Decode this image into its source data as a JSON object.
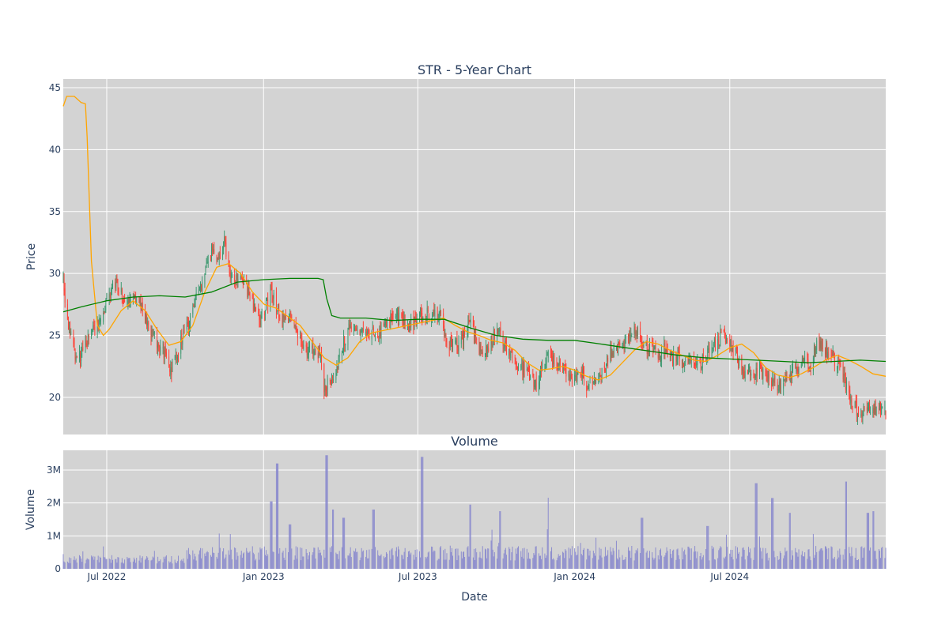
{
  "chart_data": {
    "type": "candlestick",
    "title": "STR - 5-Year Chart",
    "volume_title": "Volume",
    "xlabel": "Date",
    "ylabel": "Price",
    "volume_ylabel": "Volume",
    "x_range": [
      "2022-05-11",
      "2024-12-31"
    ],
    "price_ylim": [
      17,
      45.7
    ],
    "volume_ylim": [
      0,
      3600000
    ],
    "price_ticks": [
      20,
      25,
      30,
      35,
      40,
      45
    ],
    "volume_ticks": [
      {
        "value": 0,
        "label": "0"
      },
      {
        "value": 1000000,
        "label": "1M"
      },
      {
        "value": 2000000,
        "label": "2M"
      },
      {
        "value": 3000000,
        "label": "3M"
      }
    ],
    "x_ticks": [
      {
        "date": "2022-07-01",
        "label": "Jul 2022"
      },
      {
        "date": "2023-01-01",
        "label": "Jan 2023"
      },
      {
        "date": "2023-07-01",
        "label": "Jul 2023"
      },
      {
        "date": "2024-01-01",
        "label": "Jan 2024"
      },
      {
        "date": "2024-07-01",
        "label": "Jul 2024"
      }
    ],
    "grid": true,
    "legend": "none",
    "colors": {
      "up": "#3d9970",
      "down": "#ff4136",
      "ma_short": "#ffa500",
      "ma_long": "#008000",
      "volume": "#8080cc",
      "plot_bg": "#d3d3d3",
      "grid": "#ffffff",
      "text": "#2a3f5f"
    },
    "close_anchors": [
      [
        "2022-05-11",
        29.5
      ],
      [
        "2022-05-13",
        28.0
      ],
      [
        "2022-05-18",
        25.5
      ],
      [
        "2022-05-23",
        24.0
      ],
      [
        "2022-05-27",
        22.8
      ],
      [
        "2022-06-02",
        23.5
      ],
      [
        "2022-06-08",
        24.5
      ],
      [
        "2022-06-14",
        25.2
      ],
      [
        "2022-06-20",
        25.8
      ],
      [
        "2022-06-27",
        27.0
      ],
      [
        "2022-07-05",
        28.5
      ],
      [
        "2022-07-12",
        29.3
      ],
      [
        "2022-07-18",
        28.5
      ],
      [
        "2022-07-25",
        27.5
      ],
      [
        "2022-08-01",
        28.0
      ],
      [
        "2022-08-08",
        27.8
      ],
      [
        "2022-08-15",
        26.5
      ],
      [
        "2022-08-22",
        25.2
      ],
      [
        "2022-08-29",
        24.5
      ],
      [
        "2022-09-06",
        23.5
      ],
      [
        "2022-09-13",
        22.0
      ],
      [
        "2022-09-20",
        23.0
      ],
      [
        "2022-09-27",
        24.8
      ],
      [
        "2022-10-05",
        26.0
      ],
      [
        "2022-10-12",
        27.5
      ],
      [
        "2022-10-19",
        28.8
      ],
      [
        "2022-10-26",
        30.5
      ],
      [
        "2022-11-02",
        32.0
      ],
      [
        "2022-11-09",
        31.0
      ],
      [
        "2022-11-16",
        32.5
      ],
      [
        "2022-11-21",
        30.5
      ],
      [
        "2022-11-28",
        29.5
      ],
      [
        "2022-12-05",
        29.8
      ],
      [
        "2022-12-12",
        28.8
      ],
      [
        "2022-12-19",
        27.5
      ],
      [
        "2022-12-27",
        26.0
      ],
      [
        "2023-01-04",
        27.5
      ],
      [
        "2023-01-11",
        28.5
      ],
      [
        "2023-01-18",
        27.0
      ],
      [
        "2023-01-25",
        26.2
      ],
      [
        "2023-02-01",
        26.5
      ],
      [
        "2023-02-08",
        25.5
      ],
      [
        "2023-02-15",
        24.5
      ],
      [
        "2023-02-22",
        23.5
      ],
      [
        "2023-03-01",
        24.0
      ],
      [
        "2023-03-08",
        23.5
      ],
      [
        "2023-03-13",
        20.5
      ],
      [
        "2023-03-20",
        21.5
      ],
      [
        "2023-03-27",
        22.0
      ],
      [
        "2023-04-03",
        24.0
      ],
      [
        "2023-04-11",
        25.5
      ],
      [
        "2023-04-18",
        26.0
      ],
      [
        "2023-04-25",
        25.0
      ],
      [
        "2023-05-02",
        24.8
      ],
      [
        "2023-05-09",
        25.5
      ],
      [
        "2023-05-16",
        25.2
      ],
      [
        "2023-05-23",
        25.8
      ],
      [
        "2023-05-31",
        26.3
      ],
      [
        "2023-06-07",
        26.8
      ],
      [
        "2023-06-14",
        26.2
      ],
      [
        "2023-06-21",
        25.8
      ],
      [
        "2023-06-28",
        26.0
      ],
      [
        "2023-07-06",
        26.5
      ],
      [
        "2023-07-13",
        26.7
      ],
      [
        "2023-07-20",
        27.0
      ],
      [
        "2023-07-27",
        26.8
      ],
      [
        "2023-08-03",
        24.5
      ],
      [
        "2023-08-10",
        24.2
      ],
      [
        "2023-08-17",
        24.0
      ],
      [
        "2023-08-24",
        25.0
      ],
      [
        "2023-08-31",
        26.2
      ],
      [
        "2023-09-08",
        24.5
      ],
      [
        "2023-09-15",
        23.5
      ],
      [
        "2023-09-22",
        24.0
      ],
      [
        "2023-09-29",
        25.0
      ],
      [
        "2023-10-06",
        25.2
      ],
      [
        "2023-10-13",
        24.0
      ],
      [
        "2023-10-20",
        23.5
      ],
      [
        "2023-10-27",
        22.5
      ],
      [
        "2023-11-03",
        22.2
      ],
      [
        "2023-11-10",
        21.5
      ],
      [
        "2023-11-17",
        21.0
      ],
      [
        "2023-11-24",
        22.5
      ],
      [
        "2023-12-01",
        23.5
      ],
      [
        "2023-12-08",
        23.0
      ],
      [
        "2023-12-15",
        22.5
      ],
      [
        "2023-12-22",
        22.0
      ],
      [
        "2023-12-29",
        21.5
      ],
      [
        "2024-01-08",
        22.0
      ],
      [
        "2024-01-15",
        21.0
      ],
      [
        "2024-01-22",
        21.5
      ],
      [
        "2024-01-29",
        21.8
      ],
      [
        "2024-02-05",
        22.5
      ],
      [
        "2024-02-12",
        23.5
      ],
      [
        "2024-02-20",
        24.0
      ],
      [
        "2024-02-27",
        24.2
      ],
      [
        "2024-03-05",
        25.0
      ],
      [
        "2024-03-12",
        25.5
      ],
      [
        "2024-03-19",
        24.8
      ],
      [
        "2024-03-26",
        24.0
      ],
      [
        "2024-04-03",
        23.8
      ],
      [
        "2024-04-10",
        23.5
      ],
      [
        "2024-04-17",
        24.0
      ],
      [
        "2024-04-24",
        23.2
      ],
      [
        "2024-05-01",
        23.5
      ],
      [
        "2024-05-08",
        23.0
      ],
      [
        "2024-05-15",
        22.6
      ],
      [
        "2024-05-22",
        22.8
      ],
      [
        "2024-05-30",
        23.0
      ],
      [
        "2024-06-06",
        23.5
      ],
      [
        "2024-06-13",
        24.2
      ],
      [
        "2024-06-20",
        24.8
      ],
      [
        "2024-06-27",
        25.0
      ],
      [
        "2024-07-05",
        24.0
      ],
      [
        "2024-07-12",
        23.0
      ],
      [
        "2024-07-19",
        22.0
      ],
      [
        "2024-07-26",
        22.2
      ],
      [
        "2024-08-02",
        21.8
      ],
      [
        "2024-08-09",
        22.0
      ],
      [
        "2024-08-16",
        21.5
      ],
      [
        "2024-08-23",
        21.2
      ],
      [
        "2024-08-30",
        21.0
      ],
      [
        "2024-09-06",
        21.5
      ],
      [
        "2024-09-13",
        22.0
      ],
      [
        "2024-09-20",
        22.5
      ],
      [
        "2024-09-27",
        22.8
      ],
      [
        "2024-10-04",
        22.2
      ],
      [
        "2024-10-11",
        24.5
      ],
      [
        "2024-10-18",
        24.0
      ],
      [
        "2024-10-25",
        23.5
      ],
      [
        "2024-11-01",
        23.0
      ],
      [
        "2024-11-08",
        22.0
      ],
      [
        "2024-11-15",
        21.0
      ],
      [
        "2024-11-22",
        19.5
      ],
      [
        "2024-11-29",
        18.8
      ],
      [
        "2024-12-06",
        18.8
      ],
      [
        "2024-12-13",
        19.0
      ],
      [
        "2024-12-20",
        19.2
      ],
      [
        "2024-12-31",
        19.0
      ]
    ],
    "ma_short": {
      "name": "short moving average",
      "points": [
        [
          "2022-05-11",
          43.5
        ],
        [
          "2022-05-15",
          44.3
        ],
        [
          "2022-05-24",
          44.3
        ],
        [
          "2022-06-01",
          43.8
        ],
        [
          "2022-06-06",
          43.7
        ],
        [
          "2022-06-08",
          41.0
        ],
        [
          "2022-06-13",
          31.0
        ],
        [
          "2022-06-20",
          25.8
        ],
        [
          "2022-06-27",
          25.0
        ],
        [
          "2022-07-04",
          25.5
        ],
        [
          "2022-07-18",
          27.0
        ],
        [
          "2022-08-01",
          27.8
        ],
        [
          "2022-08-15",
          27.0
        ],
        [
          "2022-08-29",
          25.5
        ],
        [
          "2022-09-12",
          24.2
        ],
        [
          "2022-09-26",
          24.5
        ],
        [
          "2022-10-10",
          25.8
        ],
        [
          "2022-10-24",
          28.5
        ],
        [
          "2022-11-07",
          30.5
        ],
        [
          "2022-11-21",
          30.8
        ],
        [
          "2022-12-05",
          30.0
        ],
        [
          "2022-12-19",
          28.5
        ],
        [
          "2023-01-02",
          27.5
        ],
        [
          "2023-01-16",
          27.2
        ],
        [
          "2023-01-30",
          26.5
        ],
        [
          "2023-02-13",
          25.8
        ],
        [
          "2023-02-27",
          24.5
        ],
        [
          "2023-03-13",
          23.2
        ],
        [
          "2023-03-27",
          22.6
        ],
        [
          "2023-04-10",
          23.2
        ],
        [
          "2023-04-24",
          24.5
        ],
        [
          "2023-05-08",
          25.2
        ],
        [
          "2023-05-22",
          25.4
        ],
        [
          "2023-06-05",
          25.6
        ],
        [
          "2023-06-19",
          25.8
        ],
        [
          "2023-07-03",
          26.0
        ],
        [
          "2023-07-17",
          26.2
        ],
        [
          "2023-07-31",
          26.4
        ],
        [
          "2023-08-14",
          25.8
        ],
        [
          "2023-08-28",
          25.3
        ],
        [
          "2023-09-11",
          25.0
        ],
        [
          "2023-09-25",
          24.6
        ],
        [
          "2023-10-09",
          24.4
        ],
        [
          "2023-10-23",
          23.8
        ],
        [
          "2023-11-06",
          22.8
        ],
        [
          "2023-11-20",
          22.2
        ],
        [
          "2023-12-04",
          22.3
        ],
        [
          "2023-12-18",
          22.5
        ],
        [
          "2024-01-01",
          22.2
        ],
        [
          "2024-01-15",
          21.7
        ],
        [
          "2024-01-29",
          21.4
        ],
        [
          "2024-02-12",
          21.8
        ],
        [
          "2024-02-26",
          22.8
        ],
        [
          "2024-03-11",
          23.8
        ],
        [
          "2024-03-25",
          24.5
        ],
        [
          "2024-04-08",
          24.3
        ],
        [
          "2024-04-22",
          23.8
        ],
        [
          "2024-05-06",
          23.4
        ],
        [
          "2024-05-20",
          23.0
        ],
        [
          "2024-06-03",
          22.9
        ],
        [
          "2024-06-17",
          23.4
        ],
        [
          "2024-07-01",
          24.0
        ],
        [
          "2024-07-15",
          24.3
        ],
        [
          "2024-07-29",
          23.6
        ],
        [
          "2024-08-12",
          22.4
        ],
        [
          "2024-08-26",
          21.8
        ],
        [
          "2024-09-09",
          21.6
        ],
        [
          "2024-09-23",
          21.9
        ],
        [
          "2024-10-07",
          22.4
        ],
        [
          "2024-10-21",
          23.0
        ],
        [
          "2024-11-04",
          23.4
        ],
        [
          "2024-11-18",
          23.0
        ],
        [
          "2024-12-02",
          22.5
        ],
        [
          "2024-12-16",
          21.9
        ],
        [
          "2024-12-31",
          21.7
        ]
      ]
    },
    "ma_long": {
      "name": "long moving average",
      "points": [
        [
          "2022-05-11",
          26.9
        ],
        [
          "2022-06-01",
          27.3
        ],
        [
          "2022-07-01",
          27.8
        ],
        [
          "2022-08-01",
          28.1
        ],
        [
          "2022-09-01",
          28.2
        ],
        [
          "2022-10-01",
          28.1
        ],
        [
          "2022-11-01",
          28.5
        ],
        [
          "2022-12-01",
          29.3
        ],
        [
          "2023-01-01",
          29.5
        ],
        [
          "2023-02-01",
          29.6
        ],
        [
          "2023-03-06",
          29.6
        ],
        [
          "2023-03-12",
          29.5
        ],
        [
          "2023-03-16",
          28.0
        ],
        [
          "2023-03-22",
          26.6
        ],
        [
          "2023-04-01",
          26.4
        ],
        [
          "2023-05-01",
          26.4
        ],
        [
          "2023-06-01",
          26.2
        ],
        [
          "2023-07-01",
          26.3
        ],
        [
          "2023-08-01",
          26.3
        ],
        [
          "2023-09-01",
          25.6
        ],
        [
          "2023-10-01",
          25.0
        ],
        [
          "2023-11-01",
          24.7
        ],
        [
          "2023-12-01",
          24.6
        ],
        [
          "2024-01-01",
          24.6
        ],
        [
          "2024-02-01",
          24.3
        ],
        [
          "2024-03-01",
          24.0
        ],
        [
          "2024-04-01",
          23.7
        ],
        [
          "2024-05-01",
          23.4
        ],
        [
          "2024-06-01",
          23.2
        ],
        [
          "2024-07-01",
          23.1
        ],
        [
          "2024-08-01",
          23.0
        ],
        [
          "2024-09-01",
          22.9
        ],
        [
          "2024-10-01",
          22.8
        ],
        [
          "2024-11-01",
          22.9
        ],
        [
          "2024-12-01",
          23.0
        ],
        [
          "2024-12-31",
          22.9
        ]
      ]
    },
    "volume_spikes": [
      [
        "2023-01-10",
        2050000
      ],
      [
        "2023-01-17",
        3200000
      ],
      [
        "2023-02-01",
        1350000
      ],
      [
        "2023-03-16",
        3450000
      ],
      [
        "2023-03-24",
        1800000
      ],
      [
        "2023-04-05",
        1550000
      ],
      [
        "2023-05-10",
        1800000
      ],
      [
        "2023-07-06",
        3400000
      ],
      [
        "2023-09-01",
        1950000
      ],
      [
        "2023-10-06",
        1750000
      ],
      [
        "2023-12-01",
        1200000
      ],
      [
        "2024-03-20",
        1550000
      ],
      [
        "2024-06-05",
        1300000
      ],
      [
        "2024-08-01",
        2600000
      ],
      [
        "2024-08-20",
        2150000
      ],
      [
        "2024-09-09",
        1700000
      ],
      [
        "2024-11-15",
        2650000
      ],
      [
        "2024-12-10",
        1700000
      ],
      [
        "2024-12-16",
        1750000
      ]
    ]
  }
}
